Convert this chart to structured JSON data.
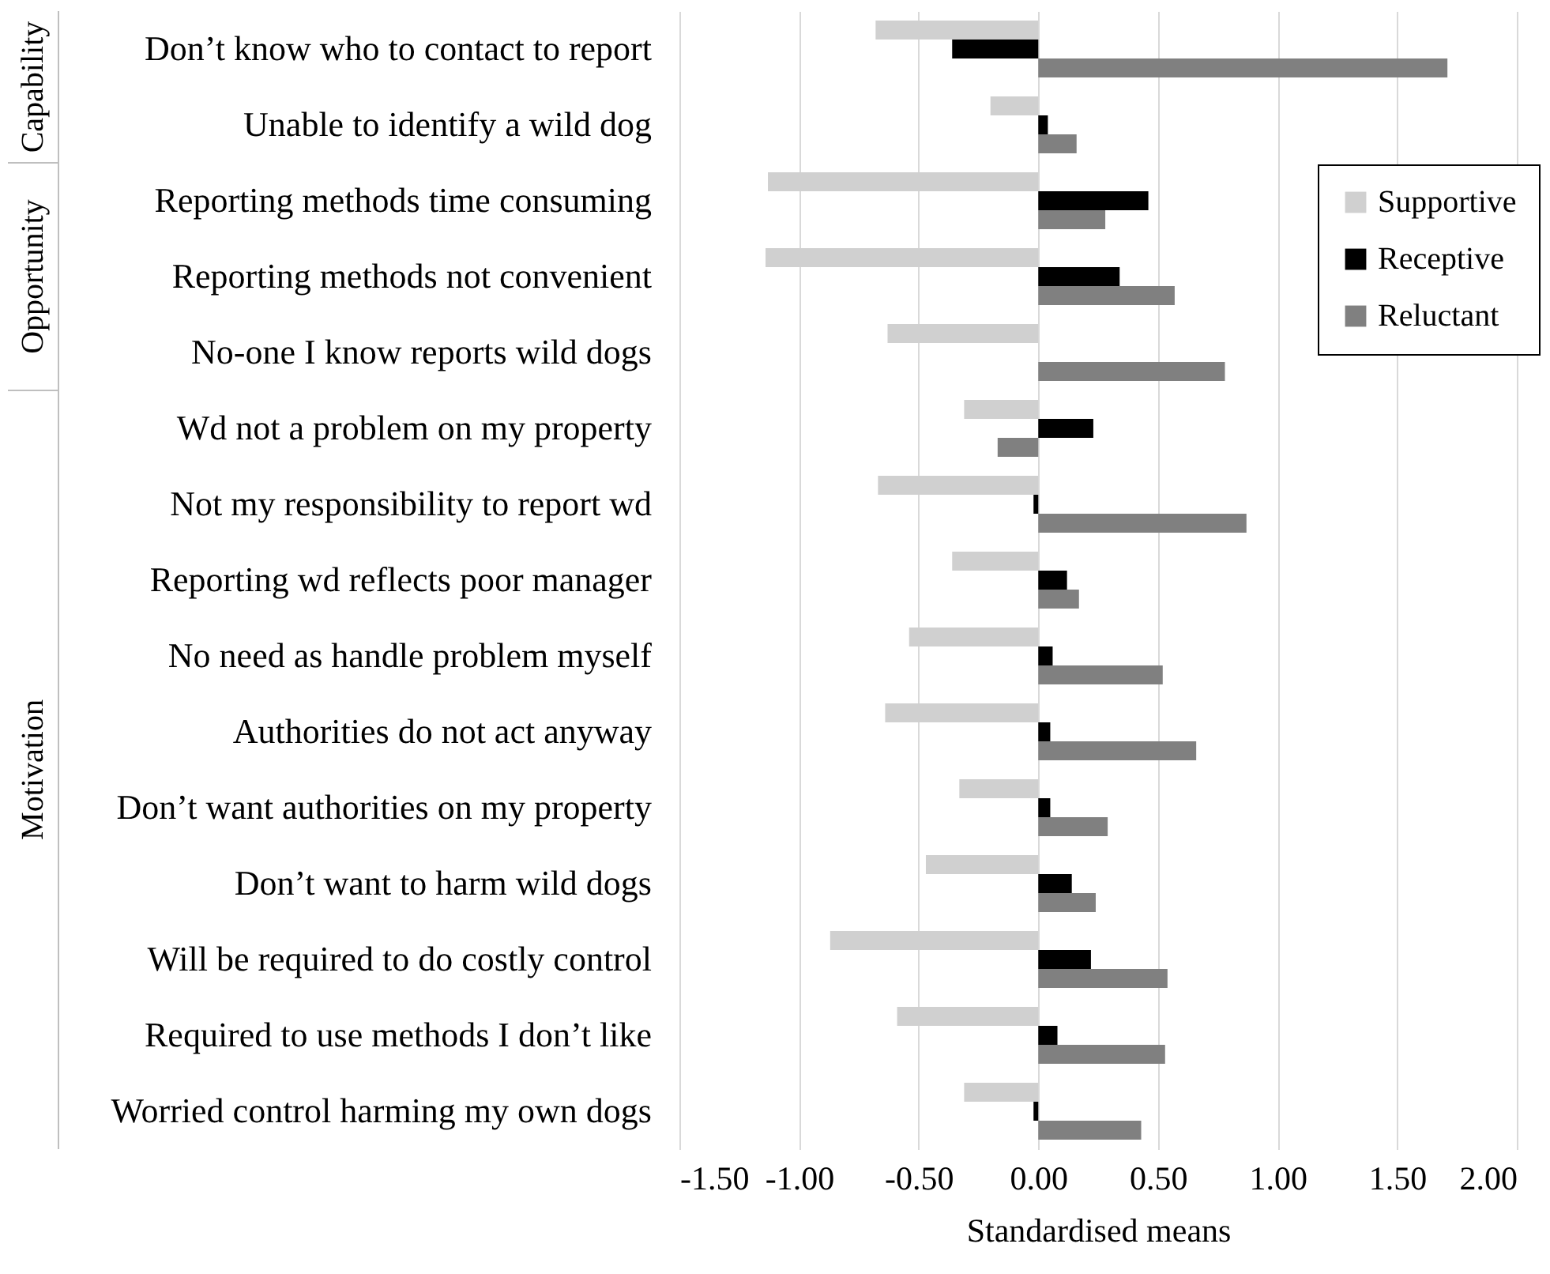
{
  "chart_data": {
    "type": "bar",
    "orientation": "horizontal",
    "xlabel": "Standardised means",
    "categories": [
      "Don’t know who to contact to report",
      "Unable to identify a wild dog",
      "Reporting methods time consuming",
      "Reporting methods not convenient",
      "No-one I know reports wild dogs",
      "Wd not a problem on my property",
      "Not my responsibility to report wd",
      "Reporting wd reflects poor manager",
      "No need as handle problem myself",
      "Authorities do not act anyway",
      "Don’t want authorities on my property",
      "Don’t want to harm wild dogs",
      "Will be required to do costly control",
      "Required to use methods I don’t like",
      "Worried control harming my own dogs"
    ],
    "series": [
      {
        "name": "Supportive",
        "color": "#d0d0d0",
        "values": [
          -0.68,
          -0.2,
          -1.13,
          -1.14,
          -0.63,
          -0.31,
          -0.67,
          -0.36,
          -0.54,
          -0.64,
          -0.33,
          -0.47,
          -0.87,
          -0.59,
          -0.31
        ]
      },
      {
        "name": "Receptive",
        "color": "#000000",
        "values": [
          -0.36,
          0.04,
          0.46,
          0.34,
          0,
          0.23,
          -0.02,
          0.12,
          0.06,
          0.05,
          0.05,
          0.14,
          0.22,
          0.08,
          -0.02
        ]
      },
      {
        "name": "Reluctant",
        "color": "#808080",
        "values": [
          1.71,
          0.16,
          0.28,
          0.57,
          0.78,
          -0.17,
          0.87,
          0.17,
          0.52,
          0.66,
          0.29,
          0.24,
          0.54,
          0.53,
          0.43
        ]
      }
    ],
    "xlim": [
      -1.5,
      2
    ],
    "xticks": [
      {
        "value": -1.5,
        "label": "-1.50"
      },
      {
        "value": -1,
        "label": "-1.00"
      },
      {
        "value": -0.5,
        "label": "-0.50"
      },
      {
        "value": 0,
        "label": "0.00"
      },
      {
        "value": 0.5,
        "label": "0.50"
      },
      {
        "value": 1,
        "label": "1.00"
      },
      {
        "value": 1.5,
        "label": "1.50"
      },
      {
        "value": 2,
        "label": "2.00"
      }
    ],
    "annotations": [
      "Capability",
      "Opportunity",
      "Motivation"
    ],
    "grid": "x",
    "legend": "top right"
  }
}
